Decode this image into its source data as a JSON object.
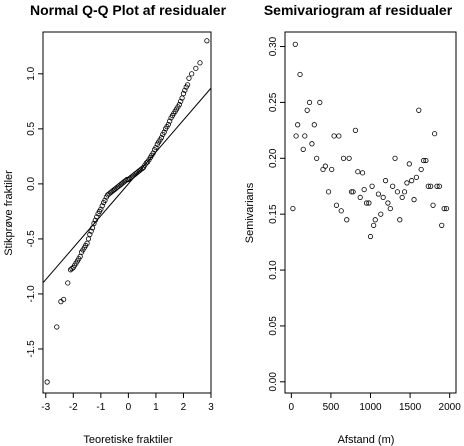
{
  "chart_data": [
    {
      "type": "scatter",
      "title": "Normal Q-Q Plot af residualer",
      "xlabel": "Teoretiske fraktiler",
      "ylabel": "Stikprøve fraktiler",
      "xlim": [
        -3.1,
        3.0
      ],
      "ylim": [
        -1.9,
        1.38
      ],
      "xticks": [
        -3,
        -2,
        -1,
        0,
        1,
        2,
        3
      ],
      "xtick_labels": [
        "-3",
        "-2",
        "-1",
        "0",
        "1",
        "2",
        "3"
      ],
      "yticks": [
        -1.5,
        -1.0,
        -0.5,
        0.0,
        0.5,
        1.0
      ],
      "ytick_labels": [
        "-1.5",
        "-1.0",
        "-0.5",
        "0.0",
        "0.5",
        "1.0"
      ],
      "grid": false,
      "reference_line": {
        "intercept": 0.0,
        "slope": 0.29
      },
      "x": [
        -2.95,
        -2.6,
        -2.45,
        -2.35,
        -2.2,
        -2.1,
        -2.05,
        -2.0,
        -1.95,
        -1.9,
        -1.85,
        -1.8,
        -1.75,
        -1.7,
        -1.65,
        -1.6,
        -1.55,
        -1.5,
        -1.45,
        -1.4,
        -1.35,
        -1.3,
        -1.25,
        -1.2,
        -1.15,
        -1.1,
        -1.05,
        -1.0,
        -0.95,
        -0.9,
        -0.85,
        -0.8,
        -0.75,
        -0.7,
        -0.65,
        -0.6,
        -0.55,
        -0.5,
        -0.45,
        -0.4,
        -0.35,
        -0.3,
        -0.25,
        -0.2,
        -0.15,
        -0.1,
        -0.05,
        0.0,
        0.05,
        0.1,
        0.15,
        0.2,
        0.25,
        0.3,
        0.35,
        0.4,
        0.45,
        0.5,
        0.55,
        0.6,
        0.65,
        0.7,
        0.75,
        0.8,
        0.85,
        0.9,
        0.95,
        1.0,
        1.05,
        1.1,
        1.15,
        1.2,
        1.25,
        1.3,
        1.35,
        1.4,
        1.45,
        1.5,
        1.55,
        1.6,
        1.65,
        1.7,
        1.75,
        1.8,
        1.85,
        1.9,
        1.95,
        2.0,
        2.05,
        2.1,
        2.15,
        2.2,
        2.3,
        2.45,
        2.6,
        2.85
      ],
      "y": [
        -1.8,
        -1.3,
        -1.07,
        -1.05,
        -0.9,
        -0.78,
        -0.77,
        -0.76,
        -0.74,
        -0.72,
        -0.7,
        -0.68,
        -0.66,
        -0.62,
        -0.6,
        -0.58,
        -0.56,
        -0.54,
        -0.5,
        -0.46,
        -0.43,
        -0.4,
        -0.36,
        -0.33,
        -0.3,
        -0.27,
        -0.25,
        -0.23,
        -0.2,
        -0.17,
        -0.15,
        -0.12,
        -0.1,
        -0.09,
        -0.08,
        -0.07,
        -0.06,
        -0.05,
        -0.04,
        -0.03,
        -0.02,
        -0.01,
        0.0,
        0.01,
        0.02,
        0.03,
        0.04,
        0.04,
        0.05,
        0.06,
        0.07,
        0.08,
        0.09,
        0.1,
        0.11,
        0.12,
        0.13,
        0.14,
        0.15,
        0.17,
        0.19,
        0.2,
        0.22,
        0.24,
        0.26,
        0.28,
        0.31,
        0.33,
        0.36,
        0.38,
        0.4,
        0.42,
        0.45,
        0.47,
        0.5,
        0.52,
        0.54,
        0.57,
        0.6,
        0.62,
        0.64,
        0.66,
        0.68,
        0.7,
        0.72,
        0.75,
        0.78,
        0.82,
        0.85,
        0.88,
        0.9,
        0.96,
        1.0,
        1.05,
        1.1,
        1.3
      ]
    },
    {
      "type": "scatter",
      "title": "Semivariogram af residualer",
      "xlabel": "Afstand (m)",
      "ylabel": "Semivarians",
      "xlim": [
        -80,
        2080
      ],
      "ylim": [
        -0.01,
        0.313
      ],
      "xticks": [
        0,
        500,
        1000,
        1500,
        2000
      ],
      "xtick_labels": [
        "0",
        "500",
        "1000",
        "1500",
        "2000"
      ],
      "yticks": [
        0.0,
        0.05,
        0.1,
        0.15,
        0.2,
        0.25,
        0.3
      ],
      "ytick_labels": [
        "0.00",
        "0.05",
        "0.10",
        "0.15",
        "0.20",
        "0.25",
        "0.30"
      ],
      "grid": false,
      "x": [
        20,
        50,
        60,
        80,
        110,
        150,
        170,
        200,
        230,
        260,
        290,
        320,
        360,
        400,
        430,
        470,
        510,
        540,
        570,
        600,
        630,
        660,
        700,
        730,
        760,
        780,
        810,
        840,
        870,
        900,
        920,
        950,
        980,
        1000,
        1020,
        1040,
        1060,
        1100,
        1130,
        1160,
        1190,
        1220,
        1250,
        1280,
        1310,
        1340,
        1370,
        1400,
        1430,
        1460,
        1490,
        1520,
        1550,
        1580,
        1610,
        1640,
        1670,
        1700,
        1730,
        1760,
        1790,
        1810,
        1840,
        1870,
        1900,
        1930,
        1960
      ],
      "y": [
        0.155,
        0.302,
        0.22,
        0.23,
        0.275,
        0.208,
        0.22,
        0.243,
        0.25,
        0.213,
        0.23,
        0.2,
        0.25,
        0.19,
        0.193,
        0.17,
        0.19,
        0.22,
        0.158,
        0.22,
        0.153,
        0.2,
        0.145,
        0.2,
        0.17,
        0.17,
        0.225,
        0.188,
        0.165,
        0.187,
        0.172,
        0.16,
        0.16,
        0.13,
        0.175,
        0.14,
        0.145,
        0.168,
        0.15,
        0.165,
        0.18,
        0.16,
        0.155,
        0.175,
        0.2,
        0.17,
        0.145,
        0.165,
        0.17,
        0.178,
        0.195,
        0.18,
        0.163,
        0.183,
        0.243,
        0.19,
        0.198,
        0.198,
        0.175,
        0.175,
        0.158,
        0.222,
        0.175,
        0.175,
        0.14,
        0.155,
        0.155
      ]
    }
  ]
}
